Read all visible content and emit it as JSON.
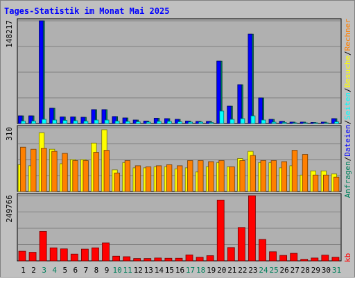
{
  "chart_data": {
    "type": "bar",
    "title": "Tages-Statistik im Monat Mai 2025",
    "categories": [
      "1",
      "2",
      "3",
      "4",
      "5",
      "6",
      "7",
      "8",
      "9",
      "10",
      "11",
      "12",
      "13",
      "14",
      "15",
      "16",
      "17",
      "18",
      "19",
      "20",
      "21",
      "22",
      "23",
      "24",
      "25",
      "26",
      "27",
      "28",
      "29",
      "30",
      "31"
    ],
    "weekend_days": [
      "3",
      "4",
      "10",
      "11",
      "17",
      "18",
      "24",
      "25",
      "31"
    ],
    "panels": [
      {
        "name": "requests",
        "ymax_label": "148217",
        "ylim": [
          0,
          148217
        ],
        "series": [
          {
            "name": "Anfragen",
            "color": "#00805c",
            "values": [
              11000,
              11000,
              148217,
              22000,
              9500,
              9500,
              9000,
              20000,
              20000,
              10000,
              8000,
              5000,
              3500,
              7500,
              7000,
              6000,
              3500,
              3000,
              3000,
              90000,
              25000,
              56000,
              129000,
              37000,
              6000,
              3000,
              2000,
              2000,
              1500,
              2000,
              7000
            ]
          },
          {
            "name": "Dateien",
            "color": "#0000ff",
            "values": [
              11000,
              11000,
              148217,
              22000,
              9500,
              9500,
              9000,
              20000,
              20000,
              10000,
              8000,
              5000,
              3500,
              7500,
              7000,
              6000,
              3500,
              3000,
              3000,
              90000,
              25000,
              56000,
              129000,
              37000,
              6000,
              3000,
              2000,
              2000,
              1500,
              2000,
              7000
            ]
          },
          {
            "name": "Seiten",
            "color": "#00ffff",
            "values": [
              3500,
              3500,
              6000,
              5000,
              4500,
              4000,
              3500,
              5000,
              5000,
              3500,
              3000,
              2500,
              2000,
              3000,
              3000,
              2500,
              2000,
              2000,
              1500,
              18000,
              6000,
              7000,
              11000,
              5000,
              2000,
              1500,
              1000,
              1000,
              800,
              1000,
              2500
            ]
          }
        ]
      },
      {
        "name": "visits",
        "ymax_label": "310",
        "ylim": [
          0,
          310
        ],
        "series": [
          {
            "name": "Besuche",
            "color": "#ffff00",
            "values": [
              130,
              125,
              285,
              205,
              135,
              155,
              155,
              235,
              300,
              105,
              140,
              115,
              115,
              120,
              120,
              110,
              115,
              95,
              120,
              140,
              120,
              160,
              195,
              140,
              140,
              115,
              125,
              80,
              100,
              100,
              85
            ]
          },
          {
            "name": "Rechner",
            "color": "#ff8000",
            "values": [
              215,
              205,
              210,
              195,
              185,
              150,
              150,
              190,
              200,
              90,
              150,
              125,
              120,
              125,
              130,
              125,
              150,
              150,
              145,
              150,
              120,
              150,
              175,
              150,
              150,
              145,
              200,
              180,
              80,
              80,
              70
            ]
          }
        ]
      },
      {
        "name": "kbytes",
        "ymax_label": "249766",
        "ylim": [
          0,
          249766
        ],
        "series": [
          {
            "name": "kb",
            "color": "#ff0000",
            "values": [
              37000,
              33000,
              113000,
              50000,
              46000,
              26000,
              45000,
              50000,
              69000,
              18000,
              16000,
              9000,
              9000,
              11000,
              10000,
              10000,
              23000,
              14000,
              20000,
              233000,
              51000,
              128000,
              249766,
              82000,
              35000,
              21000,
              29000,
              6000,
              11000,
              22000,
              14000
            ]
          }
        ]
      }
    ],
    "legend_right": [
      {
        "text": "Anfragen",
        "color": "#00805c"
      },
      {
        "text": "/",
        "color": "#000000"
      },
      {
        "text": "Dateien",
        "color": "#0000ff"
      },
      {
        "text": "/",
        "color": "#000000"
      },
      {
        "text": "Seiten",
        "color": "#00ffff"
      },
      {
        "text": "/",
        "color": "#000000"
      },
      {
        "text": "Besuche",
        "color": "#ffff00"
      },
      {
        "text": "/",
        "color": "#000000"
      },
      {
        "text": "Rechner",
        "color": "#ff8000"
      },
      {
        "text": "kb",
        "color": "#ff0000"
      }
    ]
  }
}
